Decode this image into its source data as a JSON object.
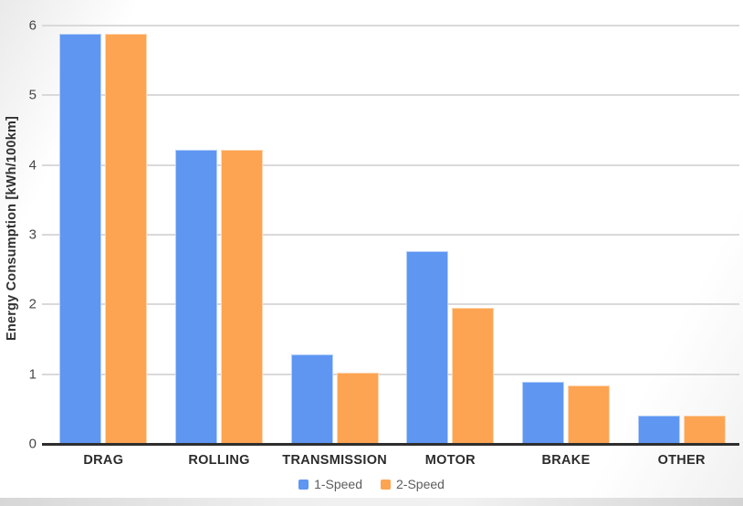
{
  "chart_data": {
    "type": "bar",
    "title": "",
    "categories": [
      "DRAG",
      "ROLLING",
      "TRANSMISSION",
      "MOTOR",
      "BRAKE",
      "OTHER"
    ],
    "series": [
      {
        "name": "1-Speed",
        "color": "#5e96f2",
        "values": [
          5.88,
          4.22,
          1.28,
          2.77,
          0.89,
          0.4
        ]
      },
      {
        "name": "2-Speed",
        "color": "#fca452",
        "values": [
          5.88,
          4.22,
          1.02,
          1.95,
          0.84,
          0.4
        ]
      }
    ],
    "xlabel": "",
    "ylabel": "Energy Consumption [kWh/100km]",
    "ylim": [
      0,
      6
    ],
    "yticks": [
      0,
      1,
      2,
      3,
      4,
      5,
      6
    ],
    "grid": true,
    "legend_position": "bottom"
  },
  "colors": {
    "series1": "#5e96f2",
    "series2": "#fca452",
    "gridline": "#d9d9d9",
    "baseline": "#2e2e2e",
    "tick_text": "#474747",
    "category_text": "#2c2c2c",
    "legend_text": "#5c5c5c"
  }
}
